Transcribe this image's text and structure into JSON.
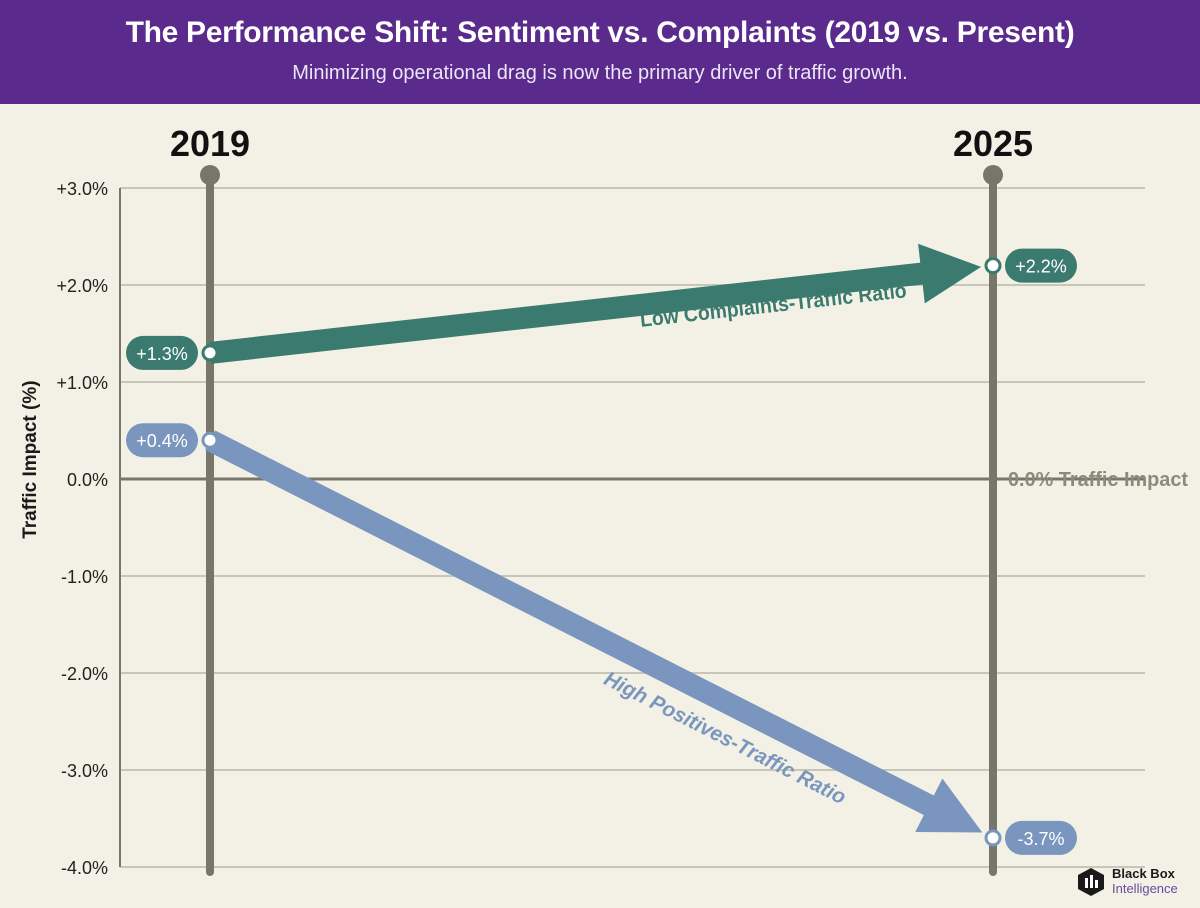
{
  "header": {
    "title": "The Performance Shift: Sentiment vs. Complaints (2019 vs. Present)",
    "subtitle": "Minimizing operational drag is now the primary driver of traffic growth."
  },
  "chart_data": {
    "type": "line",
    "title": "The Performance Shift: Sentiment vs. Complaints (2019 vs. Present)",
    "subtitle": "Minimizing operational drag is now the primary driver of traffic growth.",
    "xlabel": "",
    "ylabel": "Traffic Impact (%)",
    "x": [
      "2019",
      "2025"
    ],
    "ylim": [
      -4.0,
      3.0
    ],
    "yticks": [
      3.0,
      2.0,
      1.0,
      0.0,
      -1.0,
      -2.0,
      -3.0,
      -4.0
    ],
    "ytick_labels": [
      "+3.0%",
      "+2.0%",
      "+1.0%",
      "0.0%",
      "-1.0%",
      "-2.0%",
      "-3.0%",
      "-4.0%"
    ],
    "grid": true,
    "zero_line_label": "0.0% Traffic Impact",
    "series": [
      {
        "name": "Low Complaints-Traffic Ratio",
        "values": [
          1.3,
          2.2
        ],
        "labels": [
          "+1.3%",
          "+2.2%"
        ],
        "color": "#3b7a6e"
      },
      {
        "name": "High Positives-Traffic Ratio",
        "values": [
          0.4,
          -3.7
        ],
        "labels": [
          "+0.4%",
          "-3.7%"
        ],
        "color": "#7b96be"
      }
    ]
  },
  "logo": {
    "line1": "Black Box",
    "line2": "Intelligence"
  },
  "colors": {
    "header": "#5a2a8c",
    "background": "#f3f1e6",
    "axis": "#77766a",
    "grid": "#c8c6b8",
    "zero_label": "#8c8a78"
  }
}
